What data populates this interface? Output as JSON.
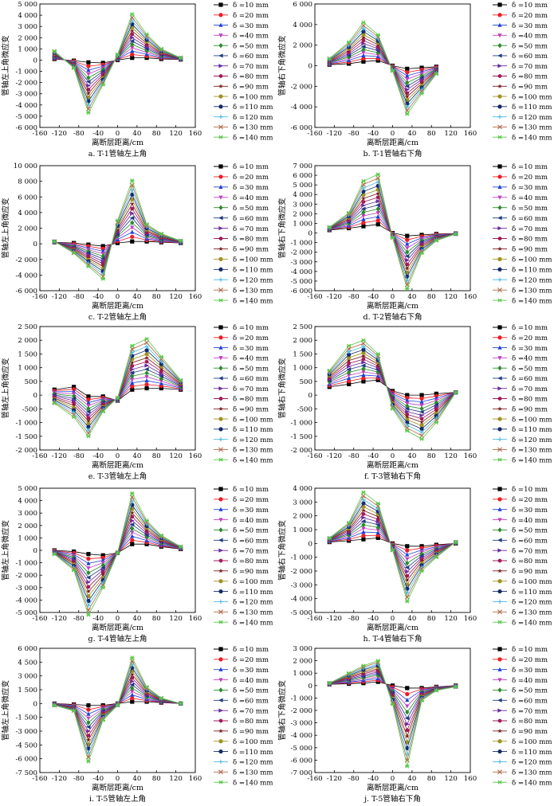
{
  "figure": {
    "legend_prefix": "δ = ",
    "legend_entries": [
      "δ =10 mm",
      "δ =20 mm",
      "δ =30 mm",
      "δ =40 mm",
      "δ =50 mm",
      "δ =60 mm",
      "δ =70 mm",
      "δ =80 mm",
      "δ =90 mm",
      "δ =100 mm",
      "δ =110 mm",
      "δ =120 mm",
      "δ =130 mm",
      "δ =140 mm"
    ],
    "series_colors": [
      "#000000",
      "#ee1c24",
      "#2040d8",
      "#c040c0",
      "#2a8a2a",
      "#1e3a80",
      "#6a2aa0",
      "#a01a5a",
      "#7a1a1a",
      "#a09020",
      "#142a6a",
      "#48b8e8",
      "#b06a4a",
      "#58c848"
    ],
    "markers": [
      "square",
      "circle",
      "triangle",
      "triangle-down",
      "diamond",
      "triangle-left",
      "triangle-right",
      "hexagon",
      "star",
      "circle",
      "circle",
      "plus",
      "cross",
      "asterisk"
    ]
  },
  "chart_data": [
    {
      "id": "a",
      "type": "line",
      "caption": "a. T-1管轴左上角",
      "xlabel": "离断层距离/cm",
      "ylabel": "管轴左上角微应变",
      "xlim": [
        -160,
        160
      ],
      "xticks": [
        -160,
        -120,
        -80,
        -40,
        0,
        40,
        80,
        120,
        160
      ],
      "ylim": [
        -6000,
        5000
      ],
      "yticks": [
        -6000,
        -5000,
        -4000,
        -3000,
        -2000,
        -1000,
        0,
        1000,
        2000,
        3000,
        4000,
        5000
      ],
      "x": [
        -130,
        -90,
        -60,
        -30,
        0,
        30,
        60,
        90,
        130
      ],
      "peak_values": [
        800,
        -700,
        -4700,
        -2200,
        500,
        4100,
        2300,
        1000,
        200
      ],
      "small_values": [
        100,
        -50,
        -200,
        -250,
        0,
        200,
        200,
        100,
        50
      ]
    },
    {
      "id": "b",
      "type": "line",
      "caption": "b. T-1管轴右下角",
      "xlabel": "离断层距离/cm",
      "ylabel": "管轴右下角微应变",
      "xlim": [
        -160,
        160
      ],
      "xticks": [
        -160,
        -120,
        -80,
        -40,
        0,
        40,
        80,
        120,
        160
      ],
      "ylim": [
        -6000,
        6000
      ],
      "yticks": [
        -6000,
        -4000,
        -2000,
        0,
        2000,
        4000,
        6000
      ],
      "x": [
        -130,
        -90,
        -60,
        -30,
        0,
        30,
        60,
        90
      ],
      "peak_values": [
        700,
        2300,
        4200,
        3000,
        -500,
        -4700,
        -2700,
        -800
      ],
      "small_values": [
        100,
        200,
        400,
        500,
        0,
        -300,
        -200,
        -100
      ]
    },
    {
      "id": "c",
      "type": "line",
      "caption": "c. T-2管轴左上角",
      "xlabel": "离断层距离/cm",
      "ylabel": "管轴左上角微应变",
      "xlim": [
        -160,
        160
      ],
      "xticks": [
        -160,
        -120,
        -80,
        -40,
        0,
        40,
        80,
        120,
        160
      ],
      "ylim": [
        -6000,
        10000
      ],
      "yticks": [
        -6000,
        -4000,
        -2000,
        0,
        2000,
        4000,
        6000,
        8000,
        10000
      ],
      "x": [
        -130,
        -90,
        -60,
        -30,
        0,
        30,
        60,
        90,
        130
      ],
      "peak_values": [
        300,
        -1200,
        -2900,
        -4500,
        3000,
        8100,
        2500,
        1300,
        400
      ],
      "small_values": [
        200,
        100,
        -100,
        -300,
        100,
        300,
        300,
        200,
        100
      ]
    },
    {
      "id": "d",
      "type": "line",
      "caption": "d. T-2管轴右下角",
      "xlabel": "离断层距离/cm",
      "ylabel": "管轴右下角微应变",
      "xlim": [
        -160,
        160
      ],
      "xticks": [
        -160,
        -120,
        -80,
        -40,
        0,
        40,
        80,
        120,
        160
      ],
      "ylim": [
        -6000,
        7000
      ],
      "yticks": [
        -6000,
        -5000,
        -4000,
        -3000,
        -2000,
        -1000,
        0,
        1000,
        2000,
        3000,
        4000,
        5000,
        6000,
        7000
      ],
      "x": [
        -130,
        -90,
        -60,
        -30,
        0,
        30,
        60,
        90,
        130
      ],
      "peak_values": [
        600,
        2100,
        5400,
        6100,
        -500,
        -5800,
        -2100,
        -800,
        -100
      ],
      "small_values": [
        300,
        500,
        700,
        900,
        0,
        -300,
        -200,
        -100,
        -50
      ]
    },
    {
      "id": "e",
      "type": "line",
      "caption": "e. T-3管轴左上角",
      "xlabel": "离断层距离/cm",
      "ylabel": "管轴左上角微应变",
      "xlim": [
        -160,
        160
      ],
      "xticks": [
        -160,
        -120,
        -80,
        -40,
        0,
        40,
        80,
        120,
        160
      ],
      "ylim": [
        -2000,
        2500
      ],
      "yticks": [
        -2000,
        -1500,
        -1000,
        -500,
        0,
        500,
        1000,
        1500,
        2000,
        2500
      ],
      "x": [
        -130,
        -90,
        -60,
        -30,
        0,
        30,
        60,
        90,
        130
      ],
      "peak_values": [
        -300,
        -800,
        -1500,
        -600,
        -100,
        1800,
        2050,
        1400,
        550
      ],
      "small_values": [
        200,
        300,
        -50,
        -50,
        -200,
        200,
        250,
        250,
        200
      ]
    },
    {
      "id": "f",
      "type": "line",
      "caption": "f. T-3管轴右下角",
      "xlabel": "离断层距离/cm",
      "ylabel": "管轴右下角微应变",
      "xlim": [
        -160,
        160
      ],
      "xticks": [
        -160,
        -120,
        -80,
        -40,
        0,
        40,
        80,
        120,
        160
      ],
      "ylim": [
        -2000,
        2500
      ],
      "yticks": [
        -2000,
        -1500,
        -1000,
        -500,
        0,
        500,
        1000,
        1500,
        2000,
        2500
      ],
      "x": [
        -130,
        -90,
        -60,
        -30,
        0,
        30,
        60,
        90,
        130
      ],
      "peak_values": [
        900,
        1800,
        2000,
        1500,
        -500,
        -1300,
        -1600,
        -1000,
        100
      ],
      "small_values": [
        300,
        400,
        500,
        550,
        150,
        0,
        0,
        50,
        100
      ]
    },
    {
      "id": "g",
      "type": "line",
      "caption": "g. T-4管轴左上角",
      "xlabel": "离断层距离/cm",
      "ylabel": "管轴左上角微应变",
      "xlim": [
        -160,
        160
      ],
      "xticks": [
        -160,
        -120,
        -80,
        -40,
        0,
        40,
        80,
        120,
        160
      ],
      "ylim": [
        -5000,
        5000
      ],
      "yticks": [
        -5000,
        -4000,
        -3000,
        -2000,
        -1000,
        0,
        1000,
        2000,
        3000,
        4000,
        5000
      ],
      "x": [
        -130,
        -90,
        -60,
        -30,
        0,
        30,
        60,
        90,
        130
      ],
      "peak_values": [
        -300,
        -1600,
        -5200,
        -3000,
        -200,
        4600,
        2400,
        1200,
        300
      ],
      "small_values": [
        0,
        -100,
        -300,
        -400,
        -200,
        500,
        500,
        300,
        100
      ]
    },
    {
      "id": "h",
      "type": "line",
      "caption": "h. T-4管轴右下角",
      "xlabel": "离断层距离/cm",
      "ylabel": "管轴右下角微应变",
      "xlim": [
        -160,
        160
      ],
      "xticks": [
        -160,
        -120,
        -80,
        -40,
        0,
        40,
        80,
        120,
        160
      ],
      "ylim": [
        -5000,
        4000
      ],
      "yticks": [
        -5000,
        -4000,
        -3000,
        -2000,
        -1000,
        0,
        1000,
        2000,
        3000,
        4000
      ],
      "x": [
        -130,
        -90,
        -60,
        -30,
        0,
        30,
        60,
        90,
        130
      ],
      "peak_values": [
        400,
        1500,
        3700,
        2900,
        -500,
        -4200,
        -2000,
        -1000,
        100
      ],
      "small_values": [
        100,
        200,
        300,
        400,
        0,
        -200,
        -200,
        -100,
        0
      ]
    },
    {
      "id": "i",
      "type": "line",
      "caption": "i. T-5管轴左上角",
      "xlabel": "离断层距离/cm",
      "ylabel": "管轴左上角微应变",
      "xlim": [
        -160,
        160
      ],
      "xticks": [
        -160,
        -120,
        -80,
        -40,
        0,
        40,
        80,
        120,
        160
      ],
      "ylim": [
        -7500,
        6000
      ],
      "yticks": [
        -7500,
        -6000,
        -4500,
        -3000,
        -1500,
        0,
        1500,
        3000,
        4500,
        6000
      ],
      "x": [
        -130,
        -90,
        -60,
        -30,
        0,
        30,
        60,
        90,
        130
      ],
      "peak_values": [
        -200,
        -800,
        -6300,
        -1800,
        -200,
        5000,
        1800,
        600,
        0
      ],
      "small_values": [
        0,
        -100,
        -200,
        -200,
        0,
        200,
        200,
        100,
        0
      ]
    },
    {
      "id": "j",
      "type": "line",
      "caption": "j. T-5管轴右下角",
      "xlabel": "离断层距离/cm",
      "ylabel": "管轴右下角微应变",
      "xlim": [
        -160,
        160
      ],
      "xticks": [
        -160,
        -120,
        -80,
        -40,
        0,
        40,
        80,
        120,
        160
      ],
      "ylim": [
        -7000,
        3000
      ],
      "yticks": [
        -7000,
        -6000,
        -5000,
        -4000,
        -3000,
        -2000,
        -1000,
        0,
        1000,
        2000,
        3000
      ],
      "x": [
        -130,
        -90,
        -60,
        -30,
        0,
        30,
        60,
        90,
        130
      ],
      "peak_values": [
        200,
        1000,
        1600,
        2000,
        -1500,
        -6500,
        -1200,
        -400,
        -100
      ],
      "small_values": [
        100,
        150,
        200,
        300,
        0,
        -200,
        -200,
        -100,
        0
      ]
    }
  ]
}
